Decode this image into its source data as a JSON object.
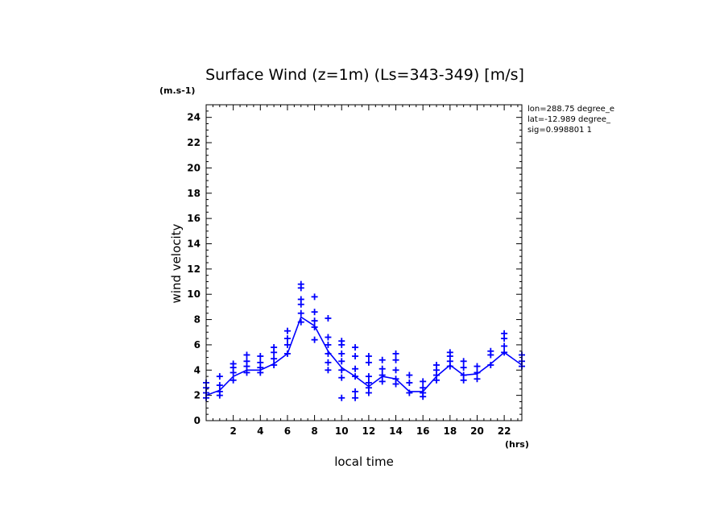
{
  "chart_data": {
    "type": "line",
    "title": "Surface Wind (z=1m) (Ls=343-349) [m/s]",
    "ylabel": "wind velocity",
    "xlabel": "local time",
    "y_unit": "(m.s-1)",
    "x_unit": "(hrs)",
    "xlim": [
      0,
      23.3
    ],
    "ylim": [
      0,
      25
    ],
    "xticks": [
      2,
      4,
      6,
      8,
      10,
      12,
      14,
      16,
      18,
      20,
      22
    ],
    "yticks": [
      0,
      2,
      4,
      6,
      8,
      10,
      12,
      14,
      16,
      18,
      20,
      22,
      24
    ],
    "info": [
      "lon=288.75 degree_e",
      "lat=-12.989 degree_",
      "sig=0.998801 1"
    ],
    "color": "#0000ff",
    "series": [
      {
        "mode": "line",
        "x": [
          0,
          1,
          2,
          3,
          4,
          5,
          6,
          7,
          8,
          9,
          10,
          11,
          12,
          13,
          14,
          15,
          16,
          17,
          18,
          19,
          20,
          21,
          22,
          23.3
        ],
        "values": [
          2.0,
          2.4,
          3.5,
          4.0,
          4.0,
          4.5,
          5.3,
          8.2,
          7.5,
          5.5,
          4.2,
          3.5,
          2.7,
          3.5,
          3.3,
          2.3,
          2.3,
          3.5,
          4.4,
          3.6,
          3.7,
          4.5,
          5.4,
          4.4
        ]
      },
      {
        "mode": "markers",
        "points": [
          [
            0,
            1.8
          ],
          [
            0,
            2.2
          ],
          [
            0,
            2.6
          ],
          [
            0,
            3.0
          ],
          [
            1,
            2.0
          ],
          [
            1,
            2.3
          ],
          [
            1,
            2.8
          ],
          [
            1,
            3.5
          ],
          [
            2,
            3.2
          ],
          [
            2,
            3.8
          ],
          [
            2,
            4.2
          ],
          [
            2,
            4.5
          ],
          [
            3,
            3.8
          ],
          [
            3,
            4.3
          ],
          [
            3,
            4.7
          ],
          [
            3,
            5.2
          ],
          [
            4,
            3.8
          ],
          [
            4,
            4.2
          ],
          [
            4,
            4.6
          ],
          [
            4,
            5.1
          ],
          [
            5,
            4.4
          ],
          [
            5,
            4.9
          ],
          [
            5,
            5.4
          ],
          [
            5,
            5.8
          ],
          [
            6,
            5.3
          ],
          [
            6,
            6.0
          ],
          [
            6,
            6.5
          ],
          [
            6,
            7.1
          ],
          [
            7,
            7.8
          ],
          [
            7,
            8.5
          ],
          [
            7,
            9.2
          ],
          [
            7,
            9.6
          ],
          [
            7,
            10.5
          ],
          [
            7,
            10.8
          ],
          [
            8,
            6.4
          ],
          [
            8,
            7.4
          ],
          [
            8,
            7.9
          ],
          [
            8,
            8.6
          ],
          [
            8,
            9.8
          ],
          [
            9,
            4.0
          ],
          [
            9,
            4.6
          ],
          [
            9,
            5.3
          ],
          [
            9,
            6.0
          ],
          [
            9,
            6.6
          ],
          [
            9,
            8.1
          ],
          [
            10,
            1.8
          ],
          [
            10,
            3.4
          ],
          [
            10,
            4.0
          ],
          [
            10,
            4.7
          ],
          [
            10,
            5.3
          ],
          [
            10,
            6.0
          ],
          [
            10,
            6.3
          ],
          [
            11,
            1.8
          ],
          [
            11,
            2.3
          ],
          [
            11,
            3.5
          ],
          [
            11,
            4.1
          ],
          [
            11,
            5.1
          ],
          [
            11,
            5.8
          ],
          [
            12,
            2.2
          ],
          [
            12,
            2.6
          ],
          [
            12,
            3.0
          ],
          [
            12,
            3.5
          ],
          [
            12,
            4.6
          ],
          [
            12,
            5.1
          ],
          [
            13,
            3.1
          ],
          [
            13,
            3.6
          ],
          [
            13,
            4.1
          ],
          [
            13,
            4.8
          ],
          [
            14,
            2.9
          ],
          [
            14,
            3.3
          ],
          [
            14,
            4.0
          ],
          [
            14,
            4.8
          ],
          [
            14,
            5.3
          ],
          [
            15,
            2.2
          ],
          [
            15,
            3.0
          ],
          [
            15,
            3.6
          ],
          [
            16,
            1.9
          ],
          [
            16,
            2.2
          ],
          [
            16,
            2.6
          ],
          [
            16,
            3.1
          ],
          [
            17,
            3.2
          ],
          [
            17,
            3.6
          ],
          [
            17,
            4.0
          ],
          [
            17,
            4.4
          ],
          [
            18,
            4.3
          ],
          [
            18,
            4.7
          ],
          [
            18,
            5.1
          ],
          [
            18,
            5.4
          ],
          [
            19,
            3.2
          ],
          [
            19,
            3.6
          ],
          [
            19,
            4.2
          ],
          [
            19,
            4.7
          ],
          [
            20,
            3.3
          ],
          [
            20,
            3.8
          ],
          [
            20,
            4.3
          ],
          [
            21,
            4.4
          ],
          [
            21,
            5.2
          ],
          [
            21,
            5.5
          ],
          [
            22,
            5.4
          ],
          [
            22,
            5.9
          ],
          [
            22,
            6.5
          ],
          [
            22,
            6.9
          ],
          [
            23.3,
            4.3
          ],
          [
            23.3,
            4.7
          ],
          [
            23.3,
            5.2
          ]
        ]
      }
    ]
  }
}
